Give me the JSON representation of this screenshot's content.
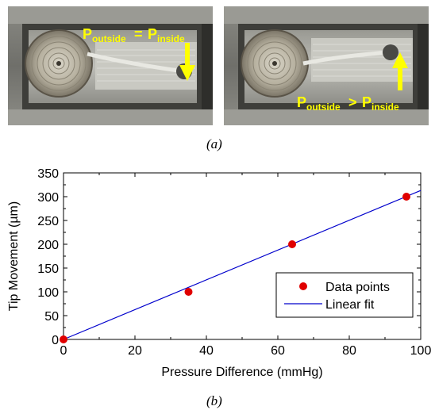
{
  "figure": {
    "label_a": "(a)",
    "label_b": "(b)"
  },
  "photo_left": {
    "label_lhs_main": "P",
    "label_lhs_sub": "outside",
    "label_eq": " = ",
    "label_rhs_main": "P",
    "label_rhs_sub": "inside",
    "arrow_direction": "down"
  },
  "photo_right": {
    "label_lhs_main": "P",
    "label_lhs_sub": "outside",
    "label_op": " > ",
    "label_rhs_main": "P",
    "label_rhs_sub": "inside",
    "arrow_direction": "up"
  },
  "colors": {
    "label_yellow": "#ffff00",
    "data_points": "#e00000",
    "fit_line": "#0000cc"
  },
  "chart_data": {
    "type": "scatter",
    "xlabel": "Pressure Difference (mmHg)",
    "ylabel": "Tip Movement (µm)",
    "xlim": [
      0,
      100
    ],
    "ylim": [
      0,
      350
    ],
    "xticks": [
      0,
      20,
      40,
      60,
      80,
      100
    ],
    "yticks": [
      0,
      50,
      100,
      150,
      200,
      250,
      300,
      350
    ],
    "grid": false,
    "legend_position": "lower-right",
    "series": [
      {
        "name": "Data points",
        "kind": "scatter",
        "color": "#e00000",
        "x": [
          0,
          35,
          64,
          96
        ],
        "y": [
          0,
          100,
          200,
          300
        ]
      },
      {
        "name": "Linear fit",
        "kind": "line",
        "color": "#0000cc",
        "x": [
          0,
          100
        ],
        "y": [
          0,
          313
        ]
      }
    ]
  }
}
